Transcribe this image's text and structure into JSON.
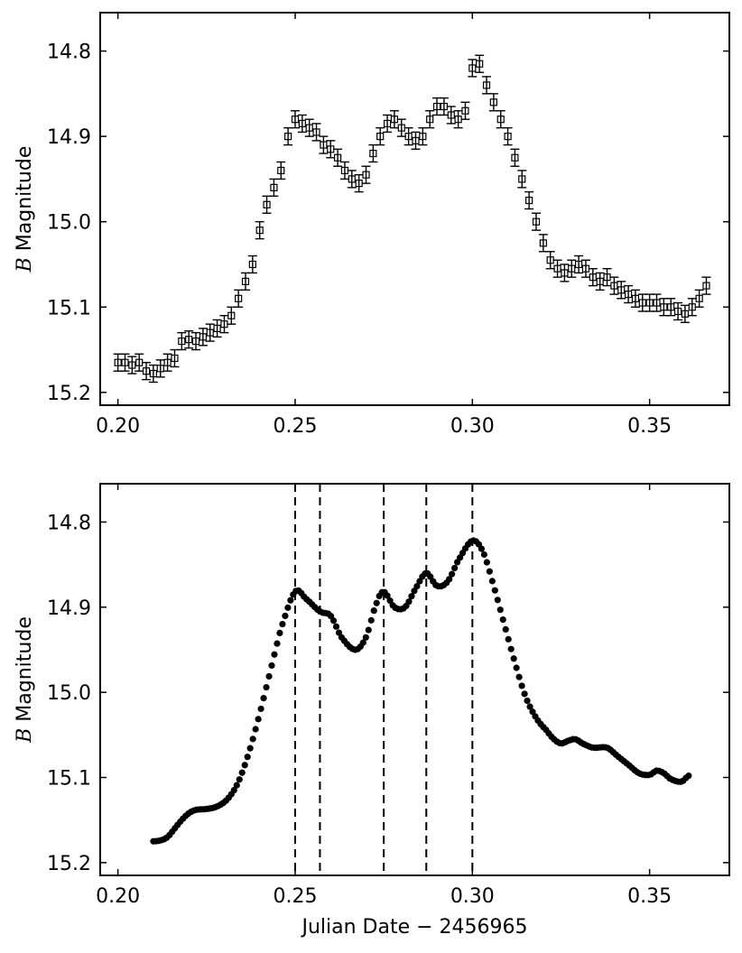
{
  "chart_data": [
    {
      "type": "scatter",
      "style": "error-bars",
      "ylabel_var": "B",
      "ylabel_rest": "Magnitude",
      "xlabel": "",
      "xlim": [
        0.195,
        0.3725
      ],
      "ylim": [
        15.215,
        14.755
      ],
      "y_inverted": true,
      "x_ticks": [
        "0.20",
        "0.25",
        "0.30",
        "0.35"
      ],
      "y_ticks": [
        "14.8",
        "14.9",
        "15.0",
        "15.1",
        "15.2"
      ],
      "x_tick_values": [
        0.2,
        0.25,
        0.3,
        0.35
      ],
      "y_tick_values": [
        14.8,
        14.9,
        15.0,
        15.1,
        15.2
      ],
      "error_magnitude": 0.01,
      "series": [
        {
          "x": [
            0.2,
            0.202,
            0.204,
            0.206,
            0.208,
            0.21,
            0.212,
            0.214,
            0.216,
            0.218,
            0.22,
            0.222,
            0.224,
            0.226,
            0.228,
            0.23,
            0.232,
            0.234,
            0.236,
            0.238,
            0.24,
            0.242,
            0.244,
            0.246,
            0.248,
            0.25,
            0.252,
            0.254,
            0.256,
            0.258,
            0.26,
            0.262,
            0.264,
            0.266,
            0.268,
            0.27,
            0.272,
            0.274,
            0.276,
            0.278,
            0.28,
            0.282,
            0.284,
            0.286,
            0.288,
            0.29,
            0.292,
            0.294,
            0.296,
            0.298,
            0.3,
            0.302,
            0.304,
            0.306,
            0.308,
            0.31,
            0.312,
            0.314,
            0.316,
            0.318,
            0.32,
            0.322,
            0.324,
            0.326,
            0.328,
            0.33,
            0.332,
            0.334,
            0.336,
            0.338,
            0.34,
            0.342,
            0.344,
            0.346,
            0.348,
            0.35,
            0.352,
            0.354,
            0.356,
            0.358,
            0.36,
            0.362,
            0.364,
            0.366
          ],
          "y": [
            15.165,
            15.165,
            15.168,
            15.165,
            15.175,
            15.178,
            15.172,
            15.165,
            15.16,
            15.14,
            15.138,
            15.14,
            15.135,
            15.13,
            15.125,
            15.12,
            15.11,
            15.09,
            15.07,
            15.05,
            15.01,
            14.98,
            14.96,
            14.94,
            14.9,
            14.88,
            14.885,
            14.89,
            14.895,
            14.91,
            14.915,
            14.925,
            14.94,
            14.95,
            14.955,
            14.945,
            14.92,
            14.9,
            14.885,
            14.88,
            14.89,
            14.9,
            14.905,
            14.9,
            14.88,
            14.865,
            14.865,
            14.875,
            14.88,
            14.87,
            14.82,
            14.815,
            14.84,
            14.86,
            14.88,
            14.9,
            14.925,
            14.95,
            14.975,
            15.0,
            15.025,
            15.045,
            15.055,
            15.06,
            15.055,
            15.05,
            15.055,
            15.065,
            15.07,
            15.065,
            15.075,
            15.08,
            15.085,
            15.09,
            15.095,
            15.095,
            15.095,
            15.1,
            15.1,
            15.105,
            15.108,
            15.1,
            15.09,
            15.075
          ]
        }
      ]
    },
    {
      "type": "scatter",
      "style": "markers",
      "ylabel_var": "B",
      "ylabel_rest": "Magnitude",
      "xlabel": "Julian Date − 2456965",
      "xlim": [
        0.195,
        0.3725
      ],
      "ylim": [
        15.215,
        14.755
      ],
      "y_inverted": true,
      "x_ticks": [
        "0.20",
        "0.25",
        "0.30",
        "0.35"
      ],
      "y_ticks": [
        "14.8",
        "14.9",
        "15.0",
        "15.1",
        "15.2"
      ],
      "x_tick_values": [
        0.2,
        0.25,
        0.3,
        0.35
      ],
      "y_tick_values": [
        14.8,
        14.9,
        15.0,
        15.1,
        15.2
      ],
      "vlines_dashed": [
        0.25,
        0.257,
        0.275,
        0.287,
        0.3
      ],
      "series": [
        {
          "knots_x": [
            0.21,
            0.212,
            0.214,
            0.216,
            0.218,
            0.22,
            0.222,
            0.225,
            0.228,
            0.231,
            0.234,
            0.237,
            0.24,
            0.243,
            0.246,
            0.25,
            0.253,
            0.257,
            0.26,
            0.263,
            0.267,
            0.27,
            0.273,
            0.275,
            0.278,
            0.281,
            0.284,
            0.287,
            0.29,
            0.293,
            0.296,
            0.3,
            0.303,
            0.306,
            0.309,
            0.312,
            0.315,
            0.318,
            0.321,
            0.323,
            0.325,
            0.327,
            0.329,
            0.331,
            0.334,
            0.338,
            0.341,
            0.344,
            0.347,
            0.35,
            0.352,
            0.354,
            0.356,
            0.359,
            0.361
          ],
          "knots_y": [
            15.175,
            15.174,
            15.17,
            15.16,
            15.15,
            15.142,
            15.138,
            15.137,
            15.134,
            15.125,
            15.105,
            15.07,
            15.025,
            14.975,
            14.925,
            14.882,
            14.89,
            14.905,
            14.91,
            14.935,
            14.95,
            14.935,
            14.895,
            14.882,
            14.9,
            14.9,
            14.878,
            14.86,
            14.875,
            14.87,
            14.845,
            14.822,
            14.835,
            14.875,
            14.92,
            14.965,
            15.005,
            15.03,
            15.045,
            15.055,
            15.06,
            15.057,
            15.055,
            15.06,
            15.065,
            15.065,
            15.075,
            15.085,
            15.095,
            15.097,
            15.092,
            15.095,
            15.102,
            15.105,
            15.098
          ],
          "point_count": 200
        }
      ]
    }
  ]
}
